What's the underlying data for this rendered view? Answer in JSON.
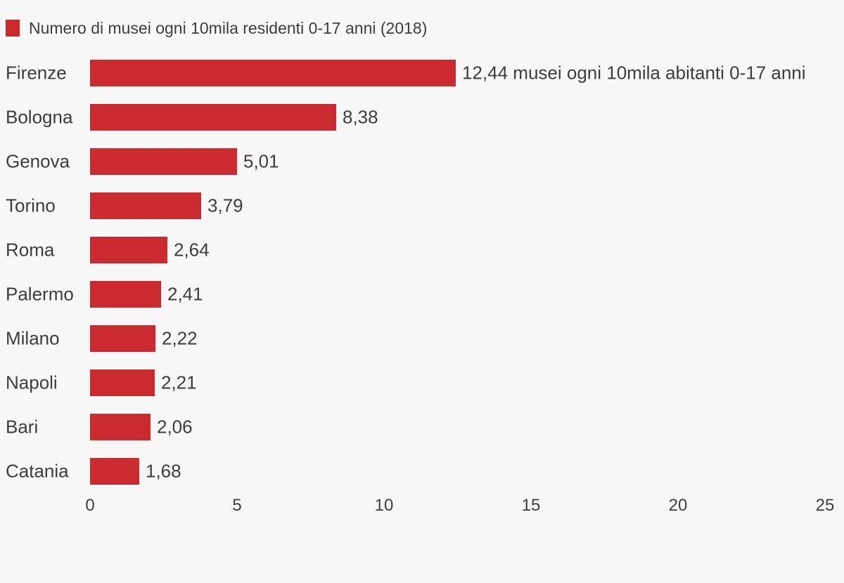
{
  "chart_data": {
    "type": "bar",
    "orientation": "horizontal",
    "title": "Numero di musei ogni 10mila residenti 0-17 anni (2018)",
    "categories": [
      "Firenze",
      "Bologna",
      "Genova",
      "Torino",
      "Roma",
      "Palermo",
      "Milano",
      "Napoli",
      "Bari",
      "Catania"
    ],
    "values": [
      12.44,
      8.38,
      5.01,
      3.79,
      2.64,
      2.41,
      2.22,
      2.21,
      2.06,
      1.68
    ],
    "value_labels": [
      "12,44 musei ogni 10mila abitanti 0-17 anni",
      "8,38",
      "5,01",
      "3,79",
      "2,64",
      "2,41",
      "2,22",
      "2,21",
      "2,06",
      "1,68"
    ],
    "xlabel": "",
    "ylabel": "",
    "xlim": [
      0,
      25
    ],
    "x_ticks": [
      0,
      5,
      10,
      15,
      20,
      25
    ],
    "x_tick_labels": [
      "0",
      "5",
      "10",
      "15",
      "20",
      "25"
    ],
    "grid": false,
    "legend_position": "top-left",
    "bar_color": "#cb2a31",
    "background_color": "#f7f7f7",
    "text_color": "#3d3d3d"
  }
}
